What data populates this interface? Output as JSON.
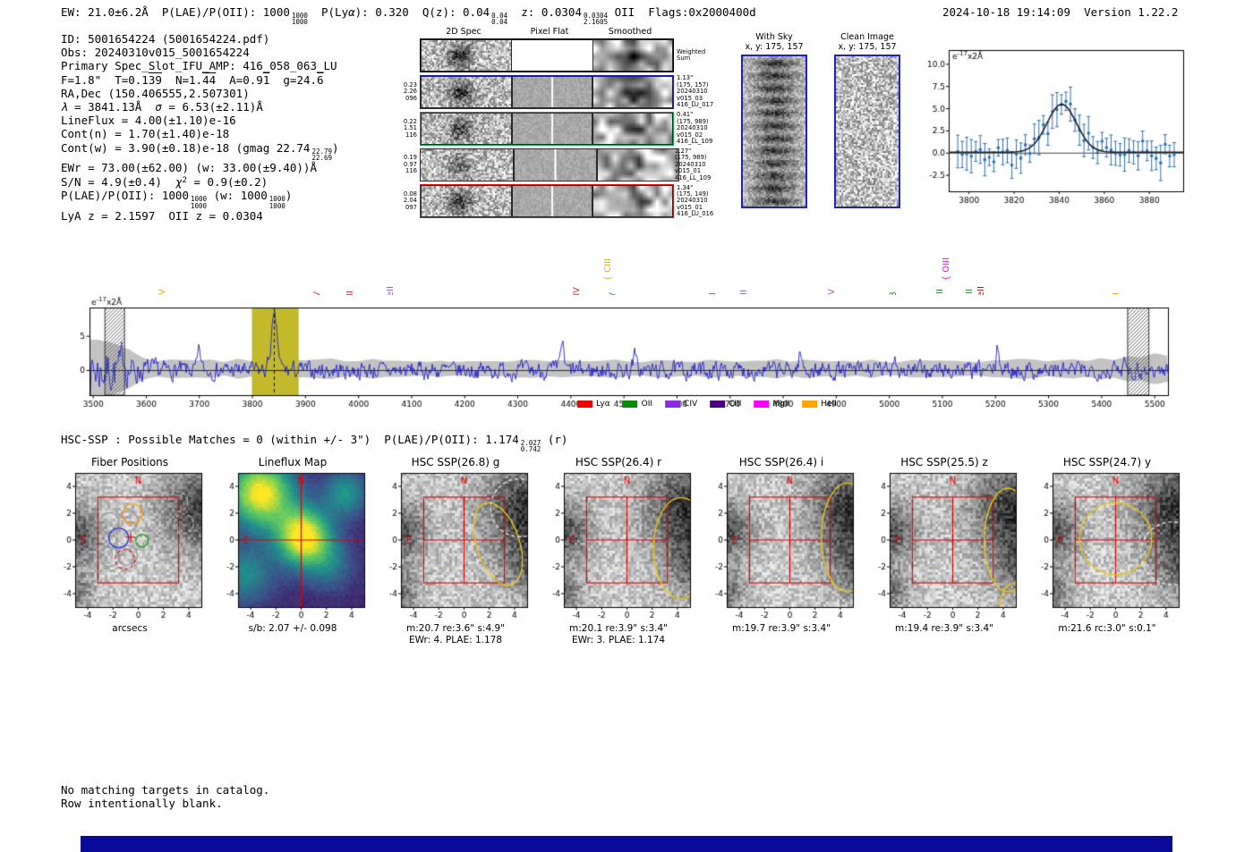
{
  "header": {
    "segments": [
      {
        "t": "EW: 21.0±6.2Å  P(LAE)/P(OII): 1000"
      },
      {
        "frac": [
          "1000",
          "1000"
        ]
      },
      {
        "t": "  P(Ly"
      },
      {
        "t": "α",
        "i": true
      },
      {
        "t": "): 0.320  Q(z): 0.04"
      },
      {
        "frac": [
          "0.04",
          "0.04"
        ]
      },
      {
        "t": "  z: 0.0304"
      },
      {
        "frac": [
          "0.0304",
          "2.1605"
        ]
      },
      {
        "t": " OII  Flags:0x2000400d"
      }
    ],
    "datetime": "2024-10-18 19:14:09",
    "version": "Version 1.22.2"
  },
  "info_lines": [
    {
      "segments": [
        {
          "t": "ID: 5001654224 (5001654224.pdf)"
        }
      ]
    },
    {
      "segments": [
        {
          "t": "Obs: 20240310v015_5001654224"
        }
      ]
    },
    {
      "segments": [
        {
          "t": "Primary Spec_Slot_IFU_AMP: 416_058_063_LU"
        }
      ]
    },
    {
      "segments": [
        {
          "t": "F=1.8\"  T=0.1"
        },
        {
          "t": "39",
          "ov": true
        },
        {
          "t": "  N=1."
        },
        {
          "t": "44",
          "ov": true
        },
        {
          "t": "  A=0.9"
        },
        {
          "t": "1",
          "ov": true
        },
        {
          "t": "  g=24."
        },
        {
          "t": "6",
          "ov": true
        }
      ]
    },
    {
      "segments": [
        {
          "t": "RA,Dec (150.406555,2.507301)"
        }
      ]
    },
    {
      "segments": [
        {
          "t": "λ",
          "i": true
        },
        {
          "t": " = 3841.13Å  "
        },
        {
          "t": "σ",
          "i": true
        },
        {
          "t": " = 6.53(±2.11)Å"
        }
      ]
    },
    {
      "segments": [
        {
          "t": "LineFlux = 4.00(±1.10)e-16"
        }
      ]
    },
    {
      "segments": [
        {
          "t": "Cont(n) = 1.70(±1.40)e-18"
        }
      ]
    },
    {
      "segments": [
        {
          "t": "Cont(w) = 3.90(±0.18)e-18 (gmag 22.74"
        },
        {
          "frac": [
            "22.79",
            "22.69"
          ]
        },
        {
          "t": ")"
        }
      ]
    },
    {
      "segments": [
        {
          "t": "EWr = 73.00(±62.00) (w: 33.00(±9.40))Å"
        }
      ]
    },
    {
      "segments": [
        {
          "t": "S/N = 4.9(±0.4)  "
        },
        {
          "t": "χ",
          "i": true
        },
        {
          "t": "2",
          "sup": true
        },
        {
          "t": " = 0.9(±0.2)"
        }
      ]
    },
    {
      "segments": [
        {
          "t": "P(LAE)/P(OII): 1000"
        },
        {
          "frac": [
            "1000",
            "1000"
          ]
        },
        {
          "t": " (w: 1000"
        },
        {
          "frac": [
            "1000",
            "1000"
          ]
        },
        {
          "t": ")"
        }
      ]
    },
    {
      "segments": [
        {
          "t": "LyA z = 2.1597  OII z = 0.0304"
        }
      ]
    }
  ],
  "spec2d": {
    "col_headers": [
      "2D Spec",
      "Pixel Flat",
      "Smoothed"
    ],
    "weighted_label": [
      "Weighted",
      "Sum"
    ],
    "weighted_seed": 10,
    "rows": [
      {
        "left": [
          "0.23",
          "2.26",
          "096"
        ],
        "border": "#1717cf",
        "right": [
          "1.13\"",
          "(175, 157)",
          "20240310",
          "v015_03",
          "416_LU_017"
        ],
        "seed": 11,
        "blob": -0.5
      },
      {
        "left": [
          "0.22",
          "1.51",
          "116"
        ],
        "border": "#00b43c",
        "right": [
          "0.41\"",
          "(175, 989)",
          "20240310",
          "v015_02",
          "416_LL_109"
        ],
        "seed": 12,
        "blob": -0.45
      },
      {
        "left": [
          "0.19",
          "0.97",
          "116"
        ],
        "border": "none",
        "right": [
          "1.27\"",
          "(175, 989)",
          "20240310",
          "v015_01",
          "416_LL_109"
        ],
        "seed": 13,
        "blob": -0.3
      },
      {
        "left": [
          "0.08",
          "2.04",
          "097"
        ],
        "border": "#e01010",
        "right": [
          "1.34\"",
          "(175, 149)",
          "20240310",
          "v015_01",
          "416_LU_016"
        ],
        "seed": 14,
        "blob": -0.5
      }
    ]
  },
  "image_panels": {
    "with_sky": {
      "title": "With Sky",
      "subtitle": "x, y: 175, 157"
    },
    "clean": {
      "title": "Clean Image",
      "subtitle": "x, y: 175, 157"
    }
  },
  "hsc_line": {
    "segments": [
      {
        "t": "HSC-SSP : Possible Matches = 0 (within +/- 3\")  P(LAE)/P(OII): 1.174"
      },
      {
        "frac": [
          "2.027",
          "0.742"
        ]
      },
      {
        "t": " (r)"
      }
    ]
  },
  "notes": [
    "No matching targets in catalog.",
    "Row intentionally blank."
  ],
  "footer": {
    "divider_color": "#0a0a99"
  },
  "chart_data": [
    {
      "id": "line_fit_inset",
      "type": "scatter",
      "annotation": {
        "pre": "e",
        "sup": "-17",
        "post": "x2Å"
      },
      "xlim": [
        3791,
        3895
      ],
      "ylim": [
        -4.3,
        11.6
      ],
      "x_ticks": [
        3800,
        3820,
        3840,
        3860,
        3880
      ],
      "y_ticks": [
        -2.5,
        0.0,
        2.5,
        5.0,
        7.5,
        10.0
      ],
      "fit": {
        "center": 3841.13,
        "sigma": 6.53,
        "amplitude": 5.4,
        "baseline": 0.1
      },
      "points_model": {
        "x_start": 3795,
        "x_step": 2,
        "n": 49,
        "noise_sigma": 1.0,
        "err_base": 0.9,
        "err_var": 1.1,
        "seed": 42
      },
      "point_color": "#2d6fb5",
      "fit_color": "#222222"
    },
    {
      "id": "full_spectrum",
      "type": "line",
      "annotation": {
        "pre": "e",
        "sup": "-17",
        "post": "x2Å"
      },
      "xlim": [
        3493,
        5525
      ],
      "ylim": [
        -3.6,
        9.2
      ],
      "x_ticks": [
        3500,
        3600,
        3700,
        3800,
        3900,
        4000,
        4100,
        4200,
        4300,
        4400,
        4500,
        4600,
        4700,
        4800,
        4900,
        5000,
        5100,
        5200,
        5300,
        5400,
        5500
      ],
      "y_ticks": [
        0,
        5
      ],
      "line_color": "#2020cc",
      "envelope_color": "#c3c3c3",
      "highlight_band": {
        "range": [
          3799,
          3887
        ],
        "color": "#c2b92b"
      },
      "detected_line": 3841.13,
      "peak": {
        "x": 3841.13,
        "height": 7.2,
        "sigma": 6.0
      },
      "hatched_regions": [
        [
          3522,
          3559
        ],
        [
          5449,
          5489
        ]
      ],
      "spikes": [
        {
          "x": 3557,
          "h": 2.4
        },
        {
          "x": 3700,
          "h": 2.6
        },
        {
          "x": 4383,
          "h": 4.2
        },
        {
          "x": 4520,
          "h": 2.1
        },
        {
          "x": 4832,
          "h": 2.4
        },
        {
          "x": 5010,
          "h": 2.3
        },
        {
          "x": 5205,
          "h": 3.0
        },
        {
          "x": 5445,
          "h": 2.2
        }
      ],
      "noise": {
        "amplitude": 1.0,
        "seed": 7,
        "edge_boost": {
          "center": 3505,
          "sigma": 48,
          "amp": 3.2
        }
      },
      "emission_labels": [
        {
          "name": "CIV",
          "wavelength": 3631,
          "color": "#ffa500",
          "tier": 0
        },
        {
          "name": "NV",
          "wavelength": 3923,
          "color": "#e03030",
          "tier": 0
        },
        {
          "name": "SiII",
          "wavelength": 3986,
          "color": "#e03030",
          "tier": 0
        },
        {
          "name": "HeII",
          "wavelength": 4061,
          "color": "#9b59d0",
          "tier": 0
        },
        {
          "name": "SiIV",
          "wavelength": 4412,
          "color": "#e03030",
          "tier": 0
        },
        {
          "name": "CIII",
          "wavelength": 4471,
          "color": "#ffa500",
          "tier": 1
        },
        {
          "name": "Hγ",
          "wavelength": 4477,
          "color": "#1e8c1e",
          "tier": 0
        },
        {
          "name": "CII",
          "wavelength": 4668,
          "color": "#9b59d0",
          "tier": 0
        },
        {
          "name": "CIII",
          "wavelength": 4727,
          "color": "#9b59d0",
          "tier": 0
        },
        {
          "name": "CIV",
          "wavelength": 4892,
          "color": "#9b59d0",
          "tier": 0
        },
        {
          "name": "Hβ",
          "wavelength": 5009,
          "color": "#1e8c1e",
          "tier": 0
        },
        {
          "name": "OIII",
          "wavelength": 5097,
          "color": "#1e8c1e",
          "tier": 0
        },
        {
          "name": "OIII",
          "wavelength": 5108,
          "color": "#ff00ff",
          "tier": 1
        },
        {
          "name": "OIII",
          "wavelength": 5152,
          "color": "#1e8c1e",
          "tier": 0
        },
        {
          "name": "HeII",
          "wavelength": 5174,
          "color": "#8b1a1a",
          "tier": 0
        },
        {
          "name": "CII",
          "wavelength": 5429,
          "color": "#ffa500",
          "tier": 0
        }
      ],
      "legend": [
        {
          "label": "Lyα",
          "color": "#ee0000"
        },
        {
          "label": "OII",
          "color": "#0a8a0a"
        },
        {
          "label": "CIV",
          "color": "#8a2be2"
        },
        {
          "label": "CIII",
          "color": "#4b0082"
        },
        {
          "label": "MgII",
          "color": "#ff00ff"
        },
        {
          "label": "HeII",
          "color": "#ffa500"
        }
      ]
    },
    {
      "id": "cutout_row",
      "type": "image_grid",
      "axis_ticks": [
        -4,
        -2,
        0,
        2,
        4
      ],
      "lim": [
        -5,
        5
      ],
      "overlay": {
        "box": [
          -3.2,
          3.2
        ],
        "box_color": "#dd0000",
        "n_label": "N",
        "e_label": "E"
      },
      "background_blobs": {
        "hsc": [
          [
            4.9,
            2.4,
            2.4,
            -0.6
          ],
          [
            5.4,
            -2.0,
            1.7,
            -0.35
          ],
          [
            -5.2,
            0.8,
            1.5,
            -0.5
          ],
          [
            -5.4,
            -3.8,
            1.2,
            -0.4
          ]
        ],
        "fiber": [
          [
            4.9,
            2.4,
            2.2,
            -0.55
          ],
          [
            -5.2,
            0.5,
            1.5,
            -0.5
          ],
          [
            -5.4,
            -3.8,
            1.2,
            -0.35
          ]
        ]
      },
      "panels": [
        {
          "key": "fiber",
          "kind": "fiber",
          "title": "Fiber Positions",
          "captions": [
            "arcsecs"
          ],
          "seed": 21,
          "fibers": {
            "r": 0.78,
            "green_r": 0.5,
            "gray": [
              [
                -2.3,
                1.3
              ],
              [
                -0.8,
                1.4
              ],
              [
                -3.05,
                0.0
              ],
              [
                -2.3,
                -1.25
              ],
              [
                -0.85,
                -1.15
              ]
            ],
            "gray_dashed": [
              [
                3.6,
                1.2
              ],
              [
                4.05,
                -0.55
              ],
              [
                3.15,
                2.85
              ]
            ],
            "blue": [
              -1.55,
              0.15
            ],
            "green": [
              0.3,
              -0.05
            ],
            "red_dashed": [
              -1.05,
              -1.45
            ],
            "orange": [
              -0.45,
              1.95
            ],
            "plus": [
              -0.6,
              0.2
            ]
          }
        },
        {
          "key": "lineflux",
          "kind": "map",
          "title": "Lineflux Map",
          "captions": [
            "s/b: 2.07 +/- 0.098"
          ],
          "seed": 22,
          "blobs": [
            [
              0.1,
              0.3,
              1.5,
              0.95
            ],
            [
              -3.3,
              3.6,
              1.8,
              0.9
            ],
            [
              3.4,
              3.6,
              1.2,
              0.4
            ],
            [
              -4.5,
              -2.5,
              1.5,
              0.35
            ],
            [
              2.2,
              -1.8,
              1.3,
              0.25
            ]
          ]
        },
        {
          "key": "g",
          "kind": "hsc",
          "title": "HSC SSP(26.8) g",
          "captions": [
            "m:20.7 re:3.6\" s:4.9\"",
            "EWr: 4. PLAE: 1.178"
          ],
          "seed": 23,
          "ellipse": {
            "cx": 2.7,
            "cy": -0.3,
            "rx": 1.7,
            "ry": 3.4,
            "rot": -18
          },
          "dashed_circles": [
            {
              "cx": 4.4,
              "cy": 2.4,
              "r": 2.3
            }
          ]
        },
        {
          "key": "r",
          "kind": "hsc",
          "title": "HSC SSP(26.4) r",
          "captions": [
            "m:20.1 re:3.9\" s:3.4\"",
            "EWr: 3. PLAE: 1.174"
          ],
          "seed": 24,
          "ellipse": {
            "cx": 4.3,
            "cy": -0.6,
            "rx": 2.2,
            "ry": 4.0,
            "rot": 0
          }
        },
        {
          "key": "i",
          "kind": "hsc",
          "title": "HSC SSP(26.4) i",
          "captions": [
            "m:19.7 re:3.9\" s:3.4\""
          ],
          "seed": 25,
          "ellipse": {
            "cx": 4.6,
            "cy": 0.2,
            "rx": 2.1,
            "ry": 4.3,
            "rot": 0
          }
        },
        {
          "key": "z",
          "kind": "hsc",
          "title": "HSC SSP(25.5) z",
          "captions": [
            "m:19.4 re:3.9\" s:3.4\""
          ],
          "seed": 26,
          "ellipse": {
            "cx": 4.4,
            "cy": 0.0,
            "rx": 1.9,
            "ry": 4.1,
            "rot": 0
          },
          "extra_arc": {
            "cx": 5.4,
            "cy": -4.6,
            "r": 1.6
          }
        },
        {
          "key": "y",
          "kind": "hsc",
          "title": "HSC SSP(24.7) y",
          "captions": [
            "m:21.6 rc:3.0\" s:0.1\""
          ],
          "seed": 27,
          "circle": {
            "cx": 0.0,
            "cy": 0.1,
            "r": 2.85
          },
          "dashed_circles": [
            {
              "cx": 4.5,
              "cy": -1.0,
              "r": 2.5
            },
            {
              "cx": 0.6,
              "cy": -5.1,
              "r": 1.8
            }
          ]
        }
      ]
    }
  ]
}
